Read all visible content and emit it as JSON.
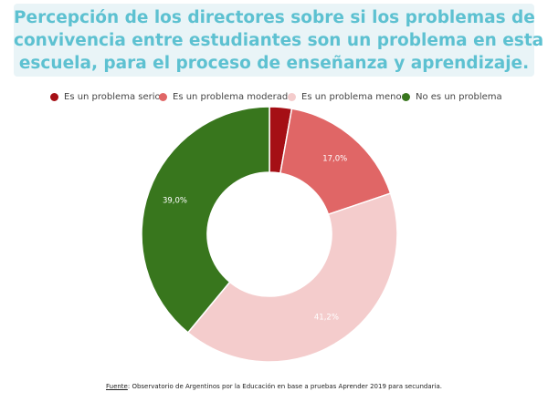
{
  "title": {
    "lines": [
      "Percepción de los directores sobre si los problemas de",
      "convivencia entre estudiantes son un problema en esta",
      "escuela, para el proceso de enseñanza y aprendizaje."
    ]
  },
  "source": {
    "label": "Fuente",
    "text": ": Observatorio de Argentinos por la Educación en base a pruebas Aprender 2019 para secundaria."
  },
  "chart_data": {
    "type": "pie",
    "donut": true,
    "legend_position": "top",
    "categories": [
      "Es un problema serio",
      "Es un problema moderado",
      "Es un problema menor",
      "No es un problema"
    ],
    "values": [
      2.8,
      17.0,
      41.2,
      39.0
    ],
    "data_labels": [
      "",
      "17,0%",
      "41,2%",
      "39,0%"
    ],
    "colors": [
      "#a50f15",
      "#e06666",
      "#f4cccc",
      "#38761d"
    ]
  }
}
